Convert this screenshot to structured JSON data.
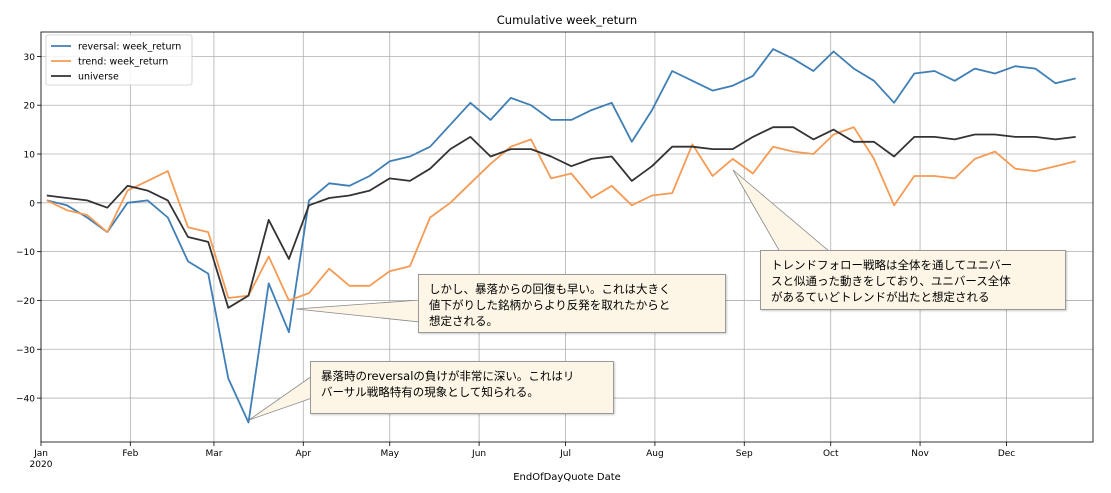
{
  "chart_data": {
    "type": "line",
    "title": "Cumulative week_return",
    "xlabel": "EndOfDayQuote Date",
    "ylabel": "",
    "ylim": [
      -49,
      35
    ],
    "yticks": [
      30,
      20,
      10,
      0,
      -10,
      -20,
      -30,
      -40
    ],
    "ytick_labels": [
      "30",
      "20",
      "10",
      "0",
      "−10",
      "−20",
      "−30",
      "−40"
    ],
    "xticks": [
      "Jan",
      "Feb",
      "Mar",
      "Apr",
      "May",
      "Jun",
      "Jul",
      "Aug",
      "Sep",
      "Oct",
      "Nov",
      "Dec"
    ],
    "xtick_year": "2020",
    "grid": true,
    "legend_position": "top-left",
    "dates": [
      "2020-01-03",
      "2020-01-10",
      "2020-01-17",
      "2020-01-24",
      "2020-01-31",
      "2020-02-07",
      "2020-02-14",
      "2020-02-21",
      "2020-02-28",
      "2020-03-06",
      "2020-03-13",
      "2020-03-20",
      "2020-03-27",
      "2020-04-03",
      "2020-04-10",
      "2020-04-17",
      "2020-04-24",
      "2020-05-01",
      "2020-05-08",
      "2020-05-15",
      "2020-05-22",
      "2020-05-29",
      "2020-06-05",
      "2020-06-12",
      "2020-06-19",
      "2020-06-26",
      "2020-07-03",
      "2020-07-10",
      "2020-07-17",
      "2020-07-24",
      "2020-07-31",
      "2020-08-07",
      "2020-08-14",
      "2020-08-21",
      "2020-08-28",
      "2020-09-04",
      "2020-09-11",
      "2020-09-18",
      "2020-09-25",
      "2020-10-02",
      "2020-10-09",
      "2020-10-16",
      "2020-10-23",
      "2020-10-30",
      "2020-11-06",
      "2020-11-13",
      "2020-11-20",
      "2020-11-27",
      "2020-12-04",
      "2020-12-11",
      "2020-12-18",
      "2020-12-25"
    ],
    "series": [
      {
        "name": "reversal: week_return",
        "color": "#3f7fb5",
        "values": [
          0.5,
          -0.5,
          -3.0,
          -6.0,
          0.0,
          0.5,
          -3.0,
          -12.0,
          -14.5,
          -36.0,
          -45.0,
          -16.5,
          -26.5,
          0.5,
          4.0,
          3.5,
          5.5,
          8.5,
          9.5,
          11.5,
          16.0,
          20.5,
          17.0,
          21.5,
          20.0,
          17.0,
          17.0,
          19.0,
          20.5,
          12.5,
          19.0,
          27.0,
          25.0,
          23.0,
          24.0,
          26.0,
          31.5,
          29.5,
          27.0,
          31.0,
          27.5,
          25.0,
          20.5,
          26.5,
          27.0,
          25.0,
          27.5,
          26.5,
          28.0,
          27.5,
          24.5,
          25.5
        ]
      },
      {
        "name": "trend: week_return",
        "color": "#f59b55",
        "values": [
          0.5,
          -1.5,
          -2.5,
          -6.0,
          2.5,
          4.5,
          6.5,
          -5.0,
          -6.0,
          -19.5,
          -19.0,
          -11.0,
          -20.0,
          -18.5,
          -13.5,
          -17.0,
          -17.0,
          -14.0,
          -13.0,
          -3.0,
          0.0,
          4.0,
          8.0,
          11.5,
          13.0,
          5.0,
          6.0,
          1.0,
          3.5,
          -0.5,
          1.5,
          2.0,
          12.0,
          5.5,
          9.0,
          6.0,
          11.5,
          10.5,
          10.0,
          14.0,
          15.5,
          9.0,
          -0.5,
          5.5,
          5.5,
          5.0,
          9.0,
          10.5,
          7.0,
          6.5,
          7.5,
          8.5
        ]
      },
      {
        "name": "universe",
        "color": "#333333",
        "values": [
          1.5,
          1.0,
          0.5,
          -1.0,
          3.5,
          2.5,
          0.5,
          -7.0,
          -8.0,
          -21.5,
          -19.0,
          -3.5,
          -11.5,
          -0.5,
          1.0,
          1.5,
          2.5,
          5.0,
          4.5,
          7.0,
          11.0,
          13.5,
          9.5,
          11.0,
          11.0,
          9.5,
          7.5,
          9.0,
          9.5,
          4.5,
          7.5,
          11.5,
          11.5,
          11.0,
          11.0,
          13.5,
          15.5,
          15.5,
          13.0,
          15.0,
          12.5,
          12.5,
          9.5,
          13.5,
          13.5,
          13.0,
          14.0,
          14.0,
          13.5,
          13.5,
          13.0,
          13.5
        ]
      }
    ]
  },
  "annotations": [
    {
      "id": "ann-1",
      "lines": [
        "しかし、暴落からの回復も早い。これは大きく",
        "値下がりした銘柄からより反発を取れたからと",
        "想定される。"
      ]
    },
    {
      "id": "ann-2",
      "lines": [
        "暴落時のreversalの負けが非常に深い。これはリ",
        "バーサル戦略特有の現象として知られる。"
      ]
    },
    {
      "id": "ann-3",
      "lines": [
        "トレンドフォロー戦略は全体を通してユニバー",
        "スと似通った動きをしており、ユニバース全体",
        "があるていどトレンドが出たと想定される"
      ]
    }
  ]
}
